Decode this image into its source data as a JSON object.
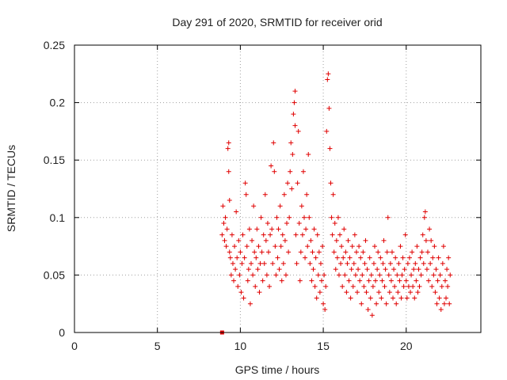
{
  "chart_data": {
    "type": "scatter",
    "title": "Day 291 of 2020, SRMTID for receiver orid",
    "xlabel": "GPS time / hours",
    "ylabel": "SRMTID / TECUs",
    "xlim": [
      0,
      24.5
    ],
    "ylim": [
      0,
      0.25
    ],
    "xticks": [
      0,
      5,
      10,
      15,
      20
    ],
    "yticks": [
      0,
      0.05,
      0.1,
      0.15,
      0.2,
      0.25
    ],
    "ytick_labels": [
      "0",
      "0.05",
      "0.1",
      "0.15",
      "0.2",
      "0.25"
    ],
    "grid": true,
    "marker": "plus",
    "series_color": "#e00000",
    "zero_marker": {
      "x": 8.9,
      "y": 0
    },
    "series": [
      {
        "name": "SRMTID",
        "points": [
          [
            8.9,
            0.085
          ],
          [
            8.95,
            0.11
          ],
          [
            9.0,
            0.095
          ],
          [
            9.05,
            0.08
          ],
          [
            9.1,
            0.1
          ],
          [
            9.15,
            0.075
          ],
          [
            9.2,
            0.09
          ],
          [
            9.25,
            0.16
          ],
          [
            9.3,
            0.165
          ],
          [
            9.3,
            0.14
          ],
          [
            9.35,
            0.07
          ],
          [
            9.35,
            0.115
          ],
          [
            9.4,
            0.065
          ],
          [
            9.45,
            0.05
          ],
          [
            9.5,
            0.085
          ],
          [
            9.55,
            0.06
          ],
          [
            9.6,
            0.045
          ],
          [
            9.65,
            0.075
          ],
          [
            9.7,
            0.055
          ],
          [
            9.75,
            0.105
          ],
          [
            9.8,
            0.065
          ],
          [
            9.85,
            0.04
          ],
          [
            9.9,
            0.08
          ],
          [
            9.95,
            0.05
          ],
          [
            10.0,
            0.07
          ],
          [
            10.05,
            0.035
          ],
          [
            10.1,
            0.06
          ],
          [
            10.15,
            0.085
          ],
          [
            10.2,
            0.03
          ],
          [
            10.25,
            0.065
          ],
          [
            10.3,
            0.13
          ],
          [
            10.35,
            0.12
          ],
          [
            10.4,
            0.075
          ],
          [
            10.45,
            0.045
          ],
          [
            10.5,
            0.055
          ],
          [
            10.55,
            0.09
          ],
          [
            10.6,
            0.025
          ],
          [
            10.65,
            0.06
          ],
          [
            10.7,
            0.08
          ],
          [
            10.75,
            0.05
          ],
          [
            10.8,
            0.11
          ],
          [
            10.85,
            0.07
          ],
          [
            10.9,
            0.04
          ],
          [
            10.95,
            0.065
          ],
          [
            11.0,
            0.09
          ],
          [
            11.05,
            0.055
          ],
          [
            11.1,
            0.075
          ],
          [
            11.15,
            0.035
          ],
          [
            11.2,
            0.06
          ],
          [
            11.25,
            0.1
          ],
          [
            11.3,
            0.07
          ],
          [
            11.35,
            0.045
          ],
          [
            11.4,
            0.085
          ],
          [
            11.45,
            0.06
          ],
          [
            11.5,
            0.12
          ],
          [
            11.55,
            0.08
          ],
          [
            11.6,
            0.05
          ],
          [
            11.65,
            0.095
          ],
          [
            11.7,
            0.07
          ],
          [
            11.75,
            0.04
          ],
          [
            11.8,
            0.085
          ],
          [
            11.85,
            0.145
          ],
          [
            11.9,
            0.09
          ],
          [
            11.95,
            0.06
          ],
          [
            12.0,
            0.165
          ],
          [
            12.05,
            0.14
          ],
          [
            12.1,
            0.075
          ],
          [
            12.15,
            0.05
          ],
          [
            12.2,
            0.1
          ],
          [
            12.25,
            0.065
          ],
          [
            12.3,
            0.09
          ],
          [
            12.35,
            0.055
          ],
          [
            12.4,
            0.11
          ],
          [
            12.45,
            0.075
          ],
          [
            12.5,
            0.045
          ],
          [
            12.55,
            0.085
          ],
          [
            12.6,
            0.06
          ],
          [
            12.65,
            0.12
          ],
          [
            12.7,
            0.08
          ],
          [
            12.75,
            0.05
          ],
          [
            12.8,
            0.095
          ],
          [
            12.85,
            0.13
          ],
          [
            12.9,
            0.07
          ],
          [
            12.95,
            0.1
          ],
          [
            13.0,
            0.14
          ],
          [
            13.05,
            0.165
          ],
          [
            13.1,
            0.125
          ],
          [
            13.15,
            0.155
          ],
          [
            13.2,
            0.19
          ],
          [
            13.25,
            0.2
          ],
          [
            13.3,
            0.21
          ],
          [
            13.3,
            0.18
          ],
          [
            13.35,
            0.085
          ],
          [
            13.4,
            0.06
          ],
          [
            13.45,
            0.13
          ],
          [
            13.5,
            0.175
          ],
          [
            13.55,
            0.095
          ],
          [
            13.6,
            0.045
          ],
          [
            13.65,
            0.07
          ],
          [
            13.7,
            0.11
          ],
          [
            13.75,
            0.085
          ],
          [
            13.8,
            0.14
          ],
          [
            13.85,
            0.1
          ],
          [
            13.9,
            0.065
          ],
          [
            13.95,
            0.09
          ],
          [
            14.0,
            0.12
          ],
          [
            14.05,
            0.075
          ],
          [
            14.1,
            0.155
          ],
          [
            14.15,
            0.1
          ],
          [
            14.2,
            0.06
          ],
          [
            14.25,
            0.08
          ],
          [
            14.3,
            0.045
          ],
          [
            14.35,
            0.07
          ],
          [
            14.4,
            0.055
          ],
          [
            14.45,
            0.09
          ],
          [
            14.5,
            0.04
          ],
          [
            14.55,
            0.065
          ],
          [
            14.6,
            0.03
          ],
          [
            14.65,
            0.085
          ],
          [
            14.7,
            0.05
          ],
          [
            14.75,
            0.07
          ],
          [
            14.8,
            0.035
          ],
          [
            14.85,
            0.06
          ],
          [
            14.9,
            0.045
          ],
          [
            14.95,
            0.075
          ],
          [
            15.0,
            0.025
          ],
          [
            15.05,
            0.05
          ],
          [
            15.1,
            0.02
          ],
          [
            15.15,
            0.04
          ],
          [
            15.2,
            0.175
          ],
          [
            15.25,
            0.22
          ],
          [
            15.3,
            0.225
          ],
          [
            15.35,
            0.195
          ],
          [
            15.4,
            0.16
          ],
          [
            15.45,
            0.13
          ],
          [
            15.5,
            0.1
          ],
          [
            15.55,
            0.085
          ],
          [
            15.6,
            0.12
          ],
          [
            15.65,
            0.07
          ],
          [
            15.7,
            0.095
          ],
          [
            15.75,
            0.055
          ],
          [
            15.8,
            0.08
          ],
          [
            15.85,
            0.065
          ],
          [
            15.9,
            0.1
          ],
          [
            15.95,
            0.05
          ],
          [
            16.0,
            0.085
          ],
          [
            16.05,
            0.06
          ],
          [
            16.1,
            0.075
          ],
          [
            16.15,
            0.04
          ],
          [
            16.2,
            0.065
          ],
          [
            16.25,
            0.09
          ],
          [
            16.3,
            0.05
          ],
          [
            16.35,
            0.07
          ],
          [
            16.4,
            0.035
          ],
          [
            16.45,
            0.06
          ],
          [
            16.5,
            0.08
          ],
          [
            16.55,
            0.045
          ],
          [
            16.6,
            0.065
          ],
          [
            16.65,
            0.03
          ],
          [
            16.7,
            0.055
          ],
          [
            16.75,
            0.075
          ],
          [
            16.8,
            0.04
          ],
          [
            16.85,
            0.06
          ],
          [
            16.9,
            0.085
          ],
          [
            16.95,
            0.05
          ],
          [
            17.0,
            0.07
          ],
          [
            17.05,
            0.035
          ],
          [
            17.1,
            0.055
          ],
          [
            17.15,
            0.075
          ],
          [
            17.2,
            0.045
          ],
          [
            17.25,
            0.065
          ],
          [
            17.3,
            0.025
          ],
          [
            17.35,
            0.05
          ],
          [
            17.4,
            0.07
          ],
          [
            17.45,
            0.04
          ],
          [
            17.5,
            0.06
          ],
          [
            17.55,
            0.08
          ],
          [
            17.6,
            0.035
          ],
          [
            17.65,
            0.055
          ],
          [
            17.7,
            0.02
          ],
          [
            17.75,
            0.045
          ],
          [
            17.8,
            0.065
          ],
          [
            17.85,
            0.03
          ],
          [
            17.9,
            0.05
          ],
          [
            17.95,
            0.015
          ],
          [
            18.0,
            0.04
          ],
          [
            18.05,
            0.06
          ],
          [
            18.1,
            0.075
          ],
          [
            18.15,
            0.045
          ],
          [
            18.2,
            0.025
          ],
          [
            18.25,
            0.055
          ],
          [
            18.3,
            0.07
          ],
          [
            18.35,
            0.035
          ],
          [
            18.4,
            0.05
          ],
          [
            18.45,
            0.065
          ],
          [
            18.5,
            0.03
          ],
          [
            18.55,
            0.045
          ],
          [
            18.6,
            0.06
          ],
          [
            18.65,
            0.08
          ],
          [
            18.7,
            0.04
          ],
          [
            18.75,
            0.055
          ],
          [
            18.8,
            0.025
          ],
          [
            18.85,
            0.07
          ],
          [
            18.9,
            0.1
          ],
          [
            18.95,
            0.05
          ],
          [
            19.0,
            0.035
          ],
          [
            19.05,
            0.06
          ],
          [
            19.1,
            0.045
          ],
          [
            19.15,
            0.07
          ],
          [
            19.2,
            0.03
          ],
          [
            19.25,
            0.055
          ],
          [
            19.3,
            0.04
          ],
          [
            19.35,
            0.065
          ],
          [
            19.4,
            0.025
          ],
          [
            19.45,
            0.05
          ],
          [
            19.5,
            0.035
          ],
          [
            19.55,
            0.06
          ],
          [
            19.6,
            0.045
          ],
          [
            19.65,
            0.075
          ],
          [
            19.7,
            0.03
          ],
          [
            19.75,
            0.05
          ],
          [
            19.8,
            0.065
          ],
          [
            19.85,
            0.04
          ],
          [
            19.9,
            0.055
          ],
          [
            19.95,
            0.085
          ],
          [
            20.0,
            0.045
          ],
          [
            20.05,
            0.03
          ],
          [
            20.1,
            0.06
          ],
          [
            20.15,
            0.04
          ],
          [
            20.2,
            0.065
          ],
          [
            20.25,
            0.035
          ],
          [
            20.3,
            0.05
          ],
          [
            20.35,
            0.07
          ],
          [
            20.4,
            0.04
          ],
          [
            20.45,
            0.055
          ],
          [
            20.5,
            0.03
          ],
          [
            20.55,
            0.06
          ],
          [
            20.6,
            0.045
          ],
          [
            20.65,
            0.075
          ],
          [
            20.7,
            0.035
          ],
          [
            20.75,
            0.055
          ],
          [
            20.8,
            0.04
          ],
          [
            20.85,
            0.065
          ],
          [
            20.9,
            0.05
          ],
          [
            20.95,
            0.07
          ],
          [
            21.0,
            0.085
          ],
          [
            21.05,
            0.06
          ],
          [
            21.1,
            0.1
          ],
          [
            21.15,
            0.105
          ],
          [
            21.2,
            0.08
          ],
          [
            21.25,
            0.055
          ],
          [
            21.3,
            0.07
          ],
          [
            21.35,
            0.045
          ],
          [
            21.4,
            0.09
          ],
          [
            21.45,
            0.06
          ],
          [
            21.5,
            0.08
          ],
          [
            21.55,
            0.04
          ],
          [
            21.6,
            0.065
          ],
          [
            21.65,
            0.05
          ],
          [
            21.7,
            0.075
          ],
          [
            21.75,
            0.035
          ],
          [
            21.8,
            0.055
          ],
          [
            21.85,
            0.025
          ],
          [
            21.9,
            0.045
          ],
          [
            21.95,
            0.065
          ],
          [
            22.0,
            0.03
          ],
          [
            22.05,
            0.05
          ],
          [
            22.1,
            0.02
          ],
          [
            22.15,
            0.04
          ],
          [
            22.2,
            0.06
          ],
          [
            22.25,
            0.075
          ],
          [
            22.3,
            0.025
          ],
          [
            22.35,
            0.045
          ],
          [
            22.4,
            0.03
          ],
          [
            22.45,
            0.055
          ],
          [
            22.5,
            0.04
          ],
          [
            22.55,
            0.065
          ],
          [
            22.6,
            0.025
          ],
          [
            22.65,
            0.05
          ]
        ]
      }
    ]
  }
}
